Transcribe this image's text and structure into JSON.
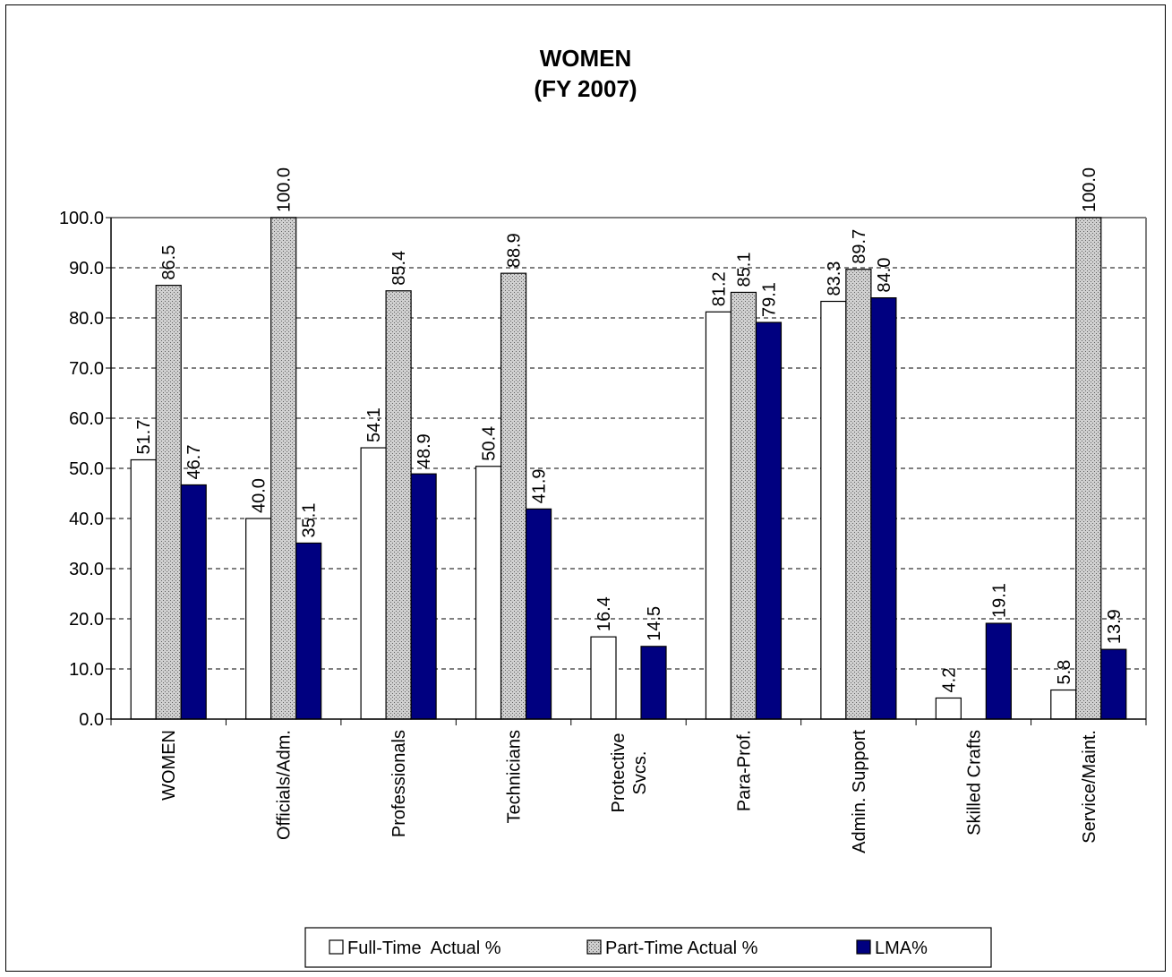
{
  "chart_data": {
    "type": "bar",
    "title": [
      "WOMEN",
      "(FY 2007)"
    ],
    "categories": [
      [
        "WOMEN"
      ],
      [
        "Officials/Adm."
      ],
      [
        "Professionals"
      ],
      [
        "Technicians"
      ],
      [
        "Protective",
        "Svcs."
      ],
      [
        "Para-Prof."
      ],
      [
        "Admin. Support"
      ],
      [
        "Skilled Crafts"
      ],
      [
        "Service/Maint."
      ]
    ],
    "series": [
      {
        "name": "Full-Time  Actual %",
        "color": "#ffffff",
        "pattern": "none",
        "values": [
          51.7,
          40.0,
          54.1,
          50.4,
          16.4,
          81.2,
          83.3,
          4.2,
          5.8
        ],
        "labels": [
          "51.7",
          "40.0",
          "54.1",
          "50.4",
          "16.4",
          "81.2",
          "83.3",
          "4.2",
          "5.8"
        ]
      },
      {
        "name": "Part-Time Actual %",
        "color": "#c8c8c8",
        "pattern": "dots",
        "values": [
          86.5,
          100.0,
          85.4,
          88.9,
          null,
          85.1,
          89.7,
          null,
          100.0
        ],
        "labels": [
          "86.5",
          "100.0",
          "85.4",
          "88.9",
          null,
          "85.1",
          "89.7",
          null,
          "100.0"
        ]
      },
      {
        "name": "LMA%",
        "color": "#000080",
        "pattern": "none",
        "values": [
          46.7,
          35.1,
          48.9,
          41.9,
          14.5,
          79.1,
          84.0,
          19.1,
          13.9
        ],
        "labels": [
          "46.7",
          "35.1",
          "48.9",
          "41.9",
          "14.5",
          "79.1",
          "84.0",
          "19.1",
          "13.9"
        ]
      }
    ],
    "ylim": [
      0,
      100
    ],
    "yticks": [
      "0.0",
      "10.0",
      "20.0",
      "30.0",
      "40.0",
      "50.0",
      "60.0",
      "70.0",
      "80.0",
      "90.0",
      "100.0"
    ],
    "grid": "dashed-horizontal",
    "legend_position": "bottom"
  }
}
